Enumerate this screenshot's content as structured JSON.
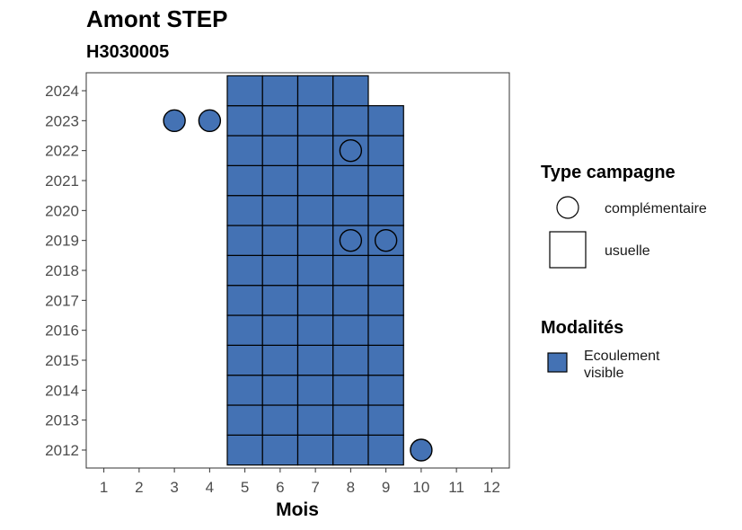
{
  "chart_data": {
    "type": "tile",
    "title": "Amont STEP",
    "subtitle": "H3030005",
    "xlabel": "Mois",
    "ylabel": "",
    "x_ticks": [
      1,
      2,
      3,
      4,
      5,
      6,
      7,
      8,
      9,
      10,
      11,
      12
    ],
    "y_ticks": [
      2012,
      2013,
      2014,
      2015,
      2016,
      2017,
      2018,
      2019,
      2020,
      2021,
      2022,
      2023,
      2024
    ],
    "xlim": [
      0.5,
      12.5
    ],
    "ylim": [
      2011.4,
      2024.6
    ],
    "grid": false,
    "fill_color": "#4472b4",
    "legend": {
      "position": "right",
      "type_title": "Type campagne",
      "type_entries": [
        {
          "label": "complémentaire",
          "shape": "circle"
        },
        {
          "label": "usuelle",
          "shape": "square"
        }
      ],
      "modalites_title": "Modalités",
      "modalites_entries": [
        {
          "label_line1": "Ecoulement",
          "label_line2": "visible",
          "color": "#4472b4"
        }
      ]
    },
    "usuelle_tiles": [
      {
        "year": 2012,
        "months": [
          5,
          6,
          7,
          8,
          9
        ]
      },
      {
        "year": 2013,
        "months": [
          5,
          6,
          7,
          8,
          9
        ]
      },
      {
        "year": 2014,
        "months": [
          5,
          6,
          7,
          8,
          9
        ]
      },
      {
        "year": 2015,
        "months": [
          5,
          6,
          7,
          8,
          9
        ]
      },
      {
        "year": 2016,
        "months": [
          5,
          6,
          7,
          8,
          9
        ]
      },
      {
        "year": 2017,
        "months": [
          5,
          6,
          7,
          8,
          9
        ]
      },
      {
        "year": 2018,
        "months": [
          5,
          6,
          7,
          8,
          9
        ]
      },
      {
        "year": 2019,
        "months": [
          5,
          6,
          7,
          8,
          9
        ]
      },
      {
        "year": 2020,
        "months": [
          5,
          6,
          7,
          8,
          9
        ]
      },
      {
        "year": 2021,
        "months": [
          5,
          6,
          7,
          8,
          9
        ]
      },
      {
        "year": 2022,
        "months": [
          5,
          6,
          7,
          8,
          9
        ]
      },
      {
        "year": 2023,
        "months": [
          5,
          6,
          7,
          8,
          9
        ]
      },
      {
        "year": 2024,
        "months": [
          5,
          6,
          7,
          8
        ]
      }
    ],
    "complementaire_points": [
      {
        "month": 3,
        "year": 2023
      },
      {
        "month": 4,
        "year": 2023
      },
      {
        "month": 8,
        "year": 2022
      },
      {
        "month": 8,
        "year": 2019
      },
      {
        "month": 9,
        "year": 2019
      },
      {
        "month": 10,
        "year": 2012
      }
    ]
  }
}
